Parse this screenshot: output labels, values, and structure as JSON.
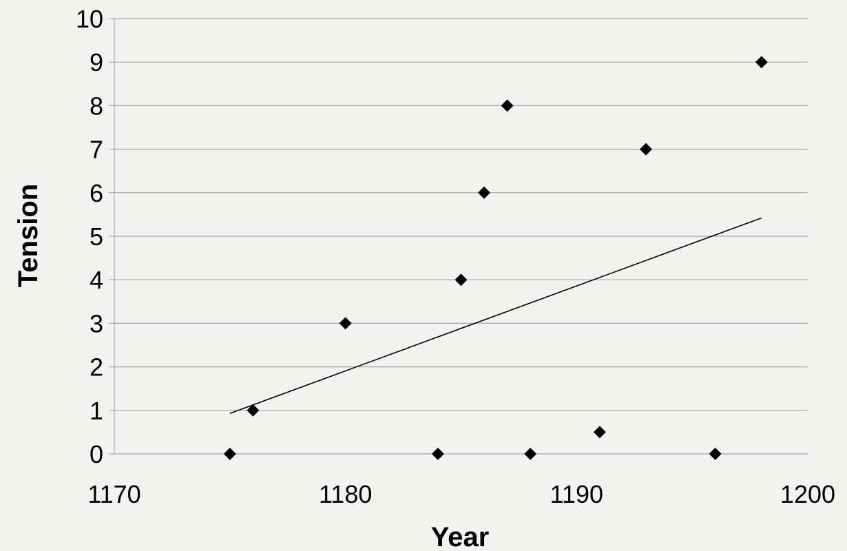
{
  "chart_data": {
    "type": "scatter",
    "xlabel": "Year",
    "ylabel": "Tension",
    "xlim": [
      1170,
      1200
    ],
    "ylim": [
      0,
      10
    ],
    "xticks": [
      1170,
      1180,
      1190,
      1200
    ],
    "yticks": [
      0,
      1,
      2,
      3,
      4,
      5,
      6,
      7,
      8,
      9,
      10
    ],
    "grid": "horizontal",
    "marker": "diamond",
    "series": [
      {
        "points": [
          {
            "x": 1175,
            "y": 0
          },
          {
            "x": 1176,
            "y": 1
          },
          {
            "x": 1180,
            "y": 3
          },
          {
            "x": 1184,
            "y": 0
          },
          {
            "x": 1185,
            "y": 4
          },
          {
            "x": 1186,
            "y": 6
          },
          {
            "x": 1187,
            "y": 8
          },
          {
            "x": 1188,
            "y": 0
          },
          {
            "x": 1191,
            "y": 0.5
          },
          {
            "x": 1193,
            "y": 7
          },
          {
            "x": 1196,
            "y": 0
          },
          {
            "x": 1198,
            "y": 9
          }
        ]
      }
    ],
    "trendline": {
      "type": "linear",
      "start": {
        "x": 1175,
        "y": 0.93
      },
      "end": {
        "x": 1198,
        "y": 5.42
      }
    },
    "colors": {
      "background": "#f2f2f0",
      "gridline": "#a6a6a6",
      "axis": "#a6a6a6",
      "marker": "#000000",
      "trendline": "#000000"
    }
  }
}
